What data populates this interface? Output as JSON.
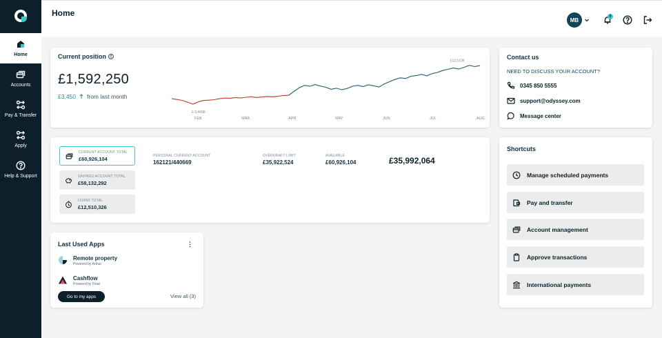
{
  "nav": {
    "items": [
      {
        "label": "Home",
        "icon": "home-icon"
      },
      {
        "label": "Accounts",
        "icon": "accounts-icon"
      },
      {
        "label": "Pay & Transfer",
        "icon": "transfer-icon"
      },
      {
        "label": "Apply",
        "icon": "apply-icon"
      },
      {
        "label": "Help & Support",
        "icon": "help-icon"
      }
    ]
  },
  "header": {
    "title": "Home",
    "avatar_initials": "MB",
    "notification_count": "0"
  },
  "position": {
    "title": "Current position",
    "amount": "£1,592,250",
    "change": "£3,450",
    "change_suffix": "from last month"
  },
  "chart_data": {
    "type": "line",
    "x_labels": [
      "FEB",
      "MAR",
      "APR",
      "MAY",
      "JUN",
      "JUL",
      "AUG"
    ],
    "annotations": {
      "low": "£-3,443K",
      "high": "£12,510K"
    },
    "series": [
      {
        "color": "#c0392b",
        "values": [
          -1200,
          -1500,
          -1900,
          -2600,
          -3443,
          -2500,
          -1900,
          -1800,
          -1600,
          -1200,
          -900,
          -1000,
          -700,
          -900,
          -600,
          -400,
          -700,
          -500,
          -300,
          -400,
          -200,
          100,
          200
        ]
      },
      {
        "color": "#1d5f6e",
        "values": [
          200,
          1800,
          3300,
          4300,
          3900,
          4600,
          4000,
          3500,
          2700,
          3100,
          2500,
          3000,
          3900,
          4300,
          3800,
          4500,
          4100,
          3600,
          4900,
          5800,
          6700,
          7400,
          7100,
          8000,
          8300,
          8800,
          8200,
          9100,
          9600,
          10400,
          10900,
          11400,
          11000,
          11700,
          12510,
          12000,
          12400
        ]
      }
    ],
    "colors": {
      "negative": "#c0392b",
      "positive": "#1d5f6e"
    }
  },
  "accounts": {
    "items": [
      {
        "label": "CURRENT ACCOUNT TOTAL",
        "amount": "£60,926,104",
        "icon": "accounts-icon"
      },
      {
        "label": "SAVINGS ACCOUNT TOTAL",
        "amount": "£58,132,292",
        "icon": "piggy-bank-icon"
      },
      {
        "label": "LOANS TOTAL",
        "amount": "£12,510,326",
        "icon": "loan-icon"
      }
    ],
    "details": [
      {
        "label": "PERSONAL CURRENT ACCOUNT",
        "value": "162121/440669"
      },
      {
        "label": "OVERDRAFT LIMIT",
        "value": "£35,922,524"
      },
      {
        "label": "AVAILABLE",
        "value": "£60,926,104"
      }
    ],
    "balance": "£35,992,064"
  },
  "apps": {
    "title": "Last Used Apps",
    "items": [
      {
        "name": "Remote property",
        "by": "Powered by Arthur"
      },
      {
        "name": "Cashflow",
        "by": "Powered by Float"
      }
    ],
    "button": "Go to my apps",
    "view_all": "View all (3)"
  },
  "contact": {
    "title": "Contact us",
    "question": "NEED TO DISCUSS YOUR ACCOUNT?",
    "phone": "0345 850 5555",
    "email": "support@odyssey.com",
    "message": "Message center"
  },
  "shortcuts": {
    "title": "Shortcuts",
    "items": [
      {
        "label": "Manage scheduled payments",
        "icon": "clock-icon"
      },
      {
        "label": "Pay and transfer",
        "icon": "wallet-icon"
      },
      {
        "label": "Account management",
        "icon": "accounts-icon"
      },
      {
        "label": "Approve transactions",
        "icon": "clipboard-icon"
      },
      {
        "label": "International payments",
        "icon": "bank-icon"
      }
    ]
  }
}
